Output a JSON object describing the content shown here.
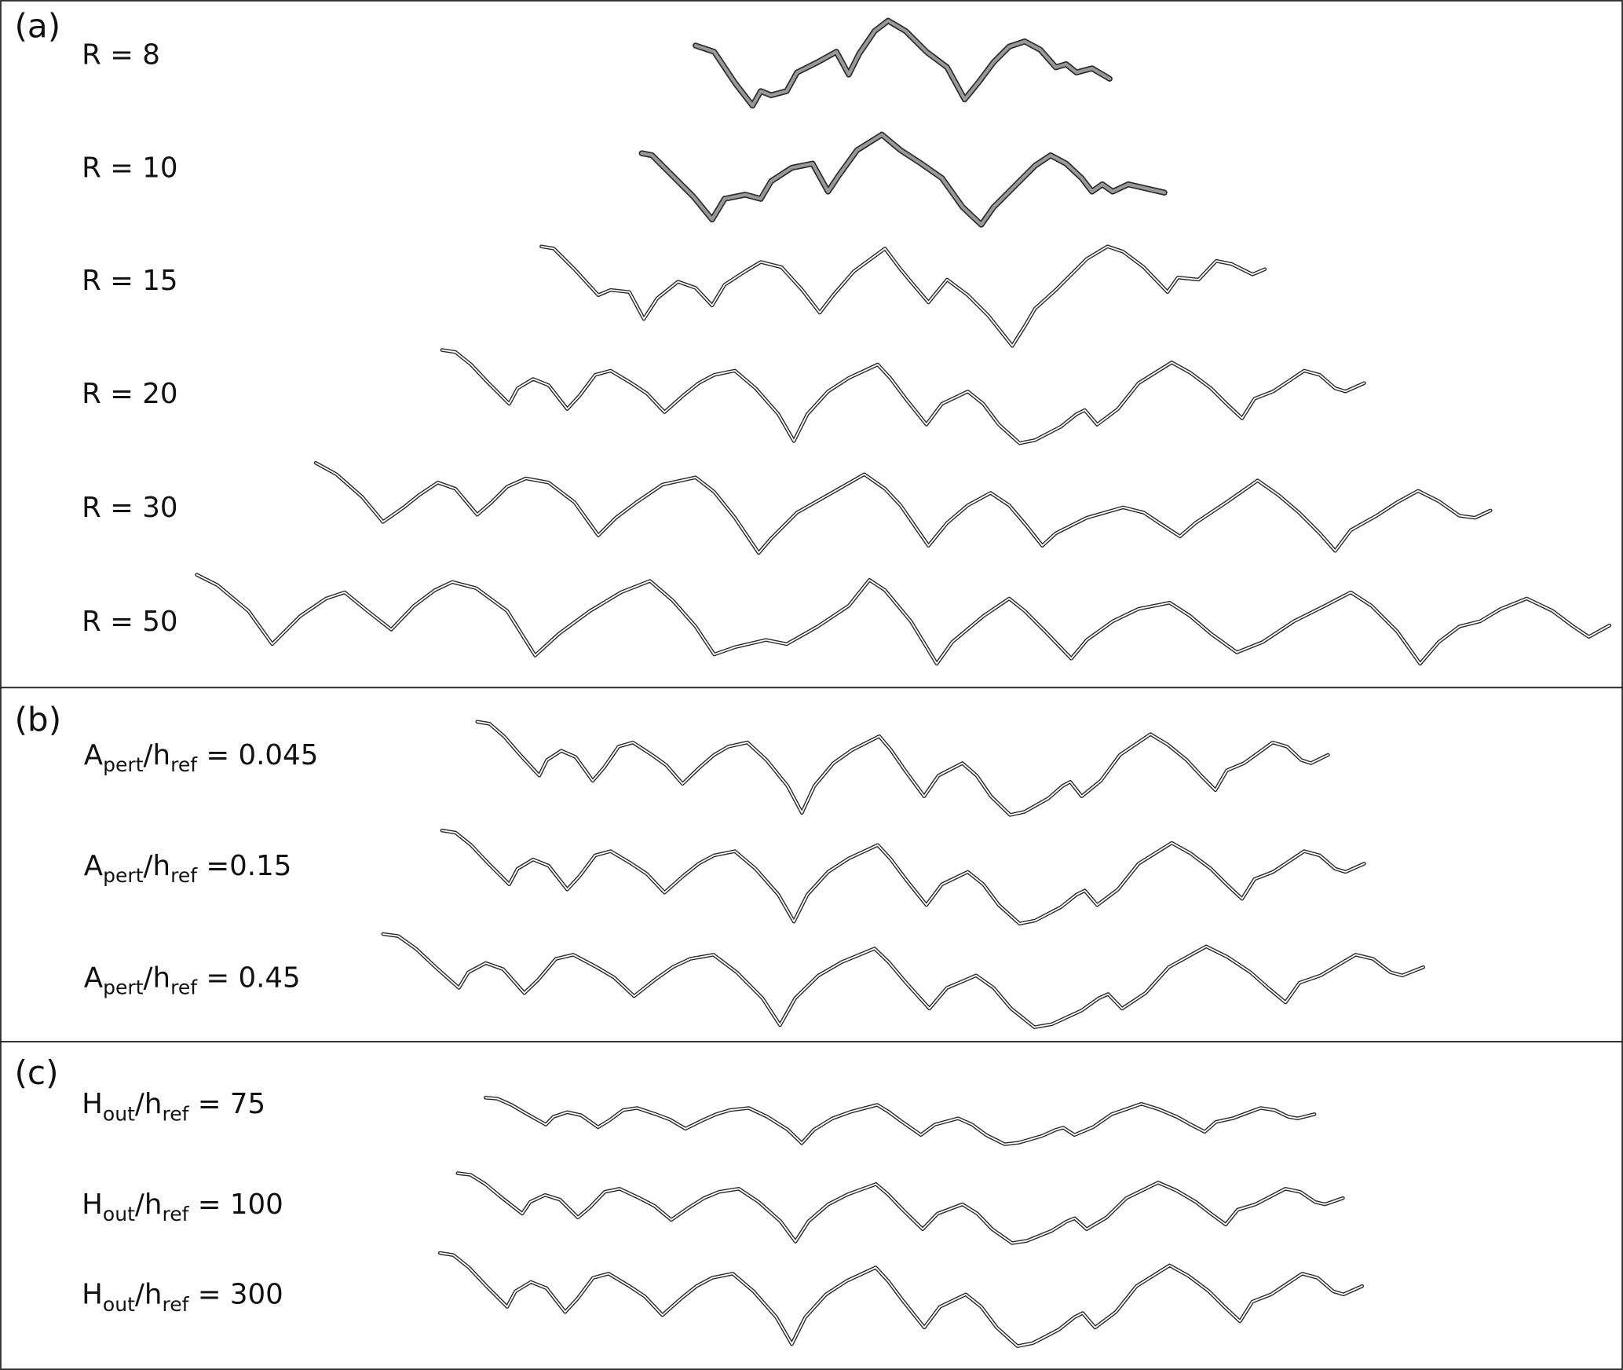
{
  "panels": [
    {
      "tag": "(a)",
      "labels": [
        "R = 8",
        "R = 10",
        "R = 15",
        "R = 20",
        "R = 30",
        "R = 50"
      ]
    },
    {
      "tag": "(b)",
      "labels": [
        [
          "A",
          "pert",
          "/h",
          "ref",
          " = 0.045"
        ],
        [
          "A",
          "pert",
          "/h",
          "ref",
          " =0.15"
        ],
        [
          "A",
          "pert",
          "/h",
          "ref",
          " = 0.45"
        ]
      ]
    },
    {
      "tag": "(c)",
      "labels": [
        [
          "H",
          "out",
          "/h",
          "ref",
          " = 75"
        ],
        [
          "H",
          "out",
          "/h",
          "ref",
          " = 100"
        ],
        [
          "H",
          "out",
          "/h",
          "ref",
          " = 300"
        ]
      ]
    }
  ]
}
